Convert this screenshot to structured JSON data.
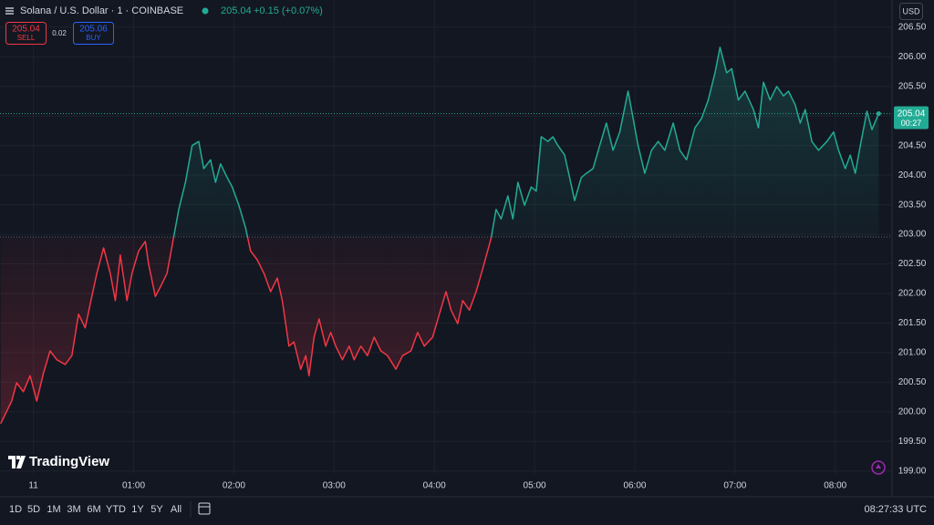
{
  "header": {
    "symbol": "Solana / U.S. Dollar · 1 · COINBASE",
    "price": "205.04",
    "change": "+0.15 (+0.07%)",
    "sell_price": "205.04",
    "sell_label": "SELL",
    "spread": "0.02",
    "buy_price": "205.06",
    "buy_label": "BUY",
    "currency": "USD",
    "last_price": "205.04",
    "countdown": "00:27",
    "logo": "TradingView"
  },
  "toolbar": {
    "ranges": [
      "1D",
      "5D",
      "1M",
      "3M",
      "6M",
      "YTD",
      "1Y",
      "5Y",
      "All"
    ],
    "clock": "08:27:33 UTC"
  },
  "chart_data": {
    "type": "baseline",
    "up_color": "#22ab94",
    "down_color": "#f23645",
    "grid": true,
    "xlim": [
      -20,
      514
    ],
    "ylim": [
      198.95,
      206.96
    ],
    "xticks": [
      {
        "value": 0,
        "label": "11"
      },
      {
        "value": 60,
        "label": "01:00"
      },
      {
        "value": 120,
        "label": "02:00"
      },
      {
        "value": 180,
        "label": "03:00"
      },
      {
        "value": 240,
        "label": "04:00"
      },
      {
        "value": 300,
        "label": "05:00"
      },
      {
        "value": 360,
        "label": "06:00"
      },
      {
        "value": 420,
        "label": "07:00"
      },
      {
        "value": 480,
        "label": "08:00"
      }
    ],
    "yticks": [
      {
        "value": 199,
        "label": "199.00"
      },
      {
        "value": 199.5,
        "label": "199.50"
      },
      {
        "value": 200,
        "label": "200.00"
      },
      {
        "value": 200.5,
        "label": "200.50"
      },
      {
        "value": 201,
        "label": "201.00"
      },
      {
        "value": 201.5,
        "label": "201.50"
      },
      {
        "value": 202,
        "label": "202.00"
      },
      {
        "value": 202.5,
        "label": "202.50"
      },
      {
        "value": 203,
        "label": "203.00"
      },
      {
        "value": 203.5,
        "label": "203.50"
      },
      {
        "value": 204,
        "label": "204.00"
      },
      {
        "value": 204.5,
        "label": "204.50"
      },
      {
        "value": 205,
        "label": "205.00"
      },
      {
        "value": 205.5,
        "label": "205.50"
      },
      {
        "value": 206,
        "label": "206.00"
      },
      {
        "value": 206.5,
        "label": "206.50"
      }
    ],
    "x": [
      -19.6,
      -17,
      -13,
      -10,
      -6,
      -2,
      2,
      6,
      10,
      14,
      19,
      23,
      27,
      31,
      35,
      38,
      42,
      46,
      49,
      52,
      56,
      59,
      63,
      67,
      69,
      73,
      76,
      80,
      83,
      87,
      91,
      95,
      99,
      102,
      106,
      109,
      112,
      116,
      119,
      123,
      127,
      130,
      134,
      138,
      142,
      146,
      149,
      153,
      156,
      160,
      163,
      165,
      168,
      171,
      175,
      178,
      181,
      185,
      189,
      192,
      196,
      200,
      204,
      208,
      212,
      217,
      221,
      226,
      230,
      234,
      239,
      243,
      247,
      250,
      254,
      257,
      261,
      265,
      269,
      274,
      277,
      280,
      284,
      287,
      290,
      294,
      298,
      301,
      304,
      308,
      311,
      314,
      318,
      321,
      324,
      328,
      331,
      335,
      339,
      343,
      347,
      351,
      356,
      359,
      362,
      366,
      370,
      374,
      378,
      383,
      387,
      391,
      396,
      400,
      404,
      408,
      411,
      415,
      418,
      422,
      426,
      431,
      434,
      437,
      441,
      445,
      449,
      452,
      456,
      459,
      462,
      466,
      470,
      475,
      479,
      482,
      486,
      489,
      492,
      495,
      499,
      502,
      506
    ],
    "values": [
      199.8,
      199.95,
      200.18,
      200.49,
      200.34,
      200.61,
      200.18,
      200.65,
      201.03,
      200.88,
      200.8,
      200.95,
      201.65,
      201.42,
      201.95,
      202.34,
      202.77,
      202.34,
      201.88,
      202.65,
      201.88,
      202.34,
      202.72,
      202.88,
      202.49,
      201.95,
      202.11,
      202.34,
      202.8,
      203.42,
      203.88,
      204.5,
      204.57,
      204.11,
      204.26,
      203.88,
      204.19,
      203.96,
      203.8,
      203.49,
      203.11,
      202.72,
      202.57,
      202.34,
      202.03,
      202.26,
      201.88,
      201.11,
      201.18,
      200.72,
      200.95,
      200.61,
      201.26,
      201.57,
      201.11,
      201.34,
      201.11,
      200.88,
      201.11,
      200.88,
      201.11,
      200.95,
      201.26,
      201.03,
      200.95,
      200.72,
      200.95,
      201.03,
      201.34,
      201.11,
      201.26,
      201.65,
      202.03,
      201.72,
      201.49,
      201.88,
      201.72,
      202.03,
      202.42,
      202.93,
      203.42,
      203.26,
      203.65,
      203.26,
      203.88,
      203.49,
      203.8,
      203.73,
      204.65,
      204.57,
      204.65,
      204.5,
      204.34,
      203.96,
      203.57,
      203.96,
      204.03,
      204.11,
      204.5,
      204.88,
      204.42,
      204.73,
      205.42,
      204.96,
      204.5,
      204.03,
      204.42,
      204.57,
      204.42,
      204.88,
      204.42,
      204.26,
      204.8,
      204.96,
      205.27,
      205.73,
      206.16,
      205.73,
      205.8,
      205.27,
      205.42,
      205.11,
      204.8,
      205.57,
      205.27,
      205.5,
      205.34,
      205.42,
      205.19,
      204.88,
      205.11,
      204.57,
      204.42,
      204.57,
      204.73,
      204.42,
      204.11,
      204.34,
      204.03,
      204.5,
      205.08,
      204.77,
      205.04
    ]
  }
}
